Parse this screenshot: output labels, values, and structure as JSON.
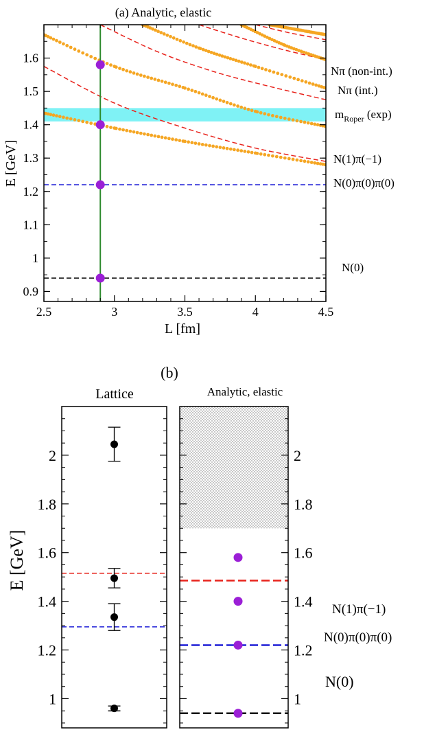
{
  "chart_data": [
    {
      "type": "line",
      "title": "(a) Analytic, elastic",
      "xlabel": "L [fm]",
      "ylabel": "E [GeV]",
      "xlim": [
        2.5,
        4.5
      ],
      "ylim": [
        0.87,
        1.7
      ],
      "xticks": [
        "2.5",
        "3",
        "3.5",
        "4",
        "4.5"
      ],
      "yticks": [
        "0.9",
        "1",
        "1.1",
        "1.2",
        "1.3",
        "1.4",
        "1.5",
        "1.6"
      ],
      "band": {
        "label_main": "m",
        "label_sub": "Roper",
        "label_tail": " (exp)",
        "y_low": 1.41,
        "y_high": 1.45,
        "color": "#7ff2f5"
      },
      "vertical_line": {
        "x": 2.9,
        "color": "#2e8b2e"
      },
      "horizontal_lines": [
        {
          "name": "N(0)π(0)π(0)",
          "y": 1.22,
          "color": "#1f1fd6"
        },
        {
          "name": "N(0)",
          "y": 0.94,
          "color": "#000000"
        }
      ],
      "noninteracting_curves": {
        "name": "Nπ (non-int.)",
        "color": "#e8231c",
        "label_curve": "N(1)π(−1)",
        "series": [
          {
            "x": [
              2.5,
              3.0,
              3.5,
              4.0,
              4.5
            ],
            "y": [
              1.575,
              1.465,
              1.39,
              1.33,
              1.29
            ]
          },
          {
            "x": [
              2.9,
              3.3,
              3.7,
              4.1,
              4.5
            ],
            "y": [
              1.7,
              1.62,
              1.56,
              1.515,
              1.475
            ]
          },
          {
            "x": [
              3.6,
              3.9,
              4.2,
              4.5
            ],
            "y": [
              1.7,
              1.66,
              1.625,
              1.595
            ]
          },
          {
            "x": [
              4.0,
              4.25,
              4.5
            ],
            "y": [
              1.7,
              1.675,
              1.655
            ]
          }
        ]
      },
      "interacting_curves": {
        "name": "Nπ (int.)",
        "color": "#f5a623",
        "series": [
          {
            "x": [
              2.5,
              3.0,
              3.5,
              4.0,
              4.5
            ],
            "y": [
              1.435,
              1.39,
              1.35,
              1.315,
              1.28
            ]
          },
          {
            "x": [
              2.5,
              3.0,
              3.5,
              4.0,
              4.5
            ],
            "y": [
              1.67,
              1.575,
              1.51,
              1.44,
              1.395
            ]
          },
          {
            "x": [
              3.2,
              3.6,
              4.0,
              4.5
            ],
            "y": [
              1.7,
              1.63,
              1.575,
              1.51
            ]
          },
          {
            "x": [
              3.9,
              4.2,
              4.5
            ],
            "y": [
              1.7,
              1.64,
              1.595
            ]
          },
          {
            "x": [
              4.1,
              4.3,
              4.5
            ],
            "y": [
              1.7,
              1.685,
              1.67
            ]
          }
        ]
      },
      "points": {
        "x": 2.9,
        "y": [
          0.94,
          1.22,
          1.4,
          1.58
        ],
        "color": "#9b1fd6"
      },
      "right_labels": [
        {
          "text": "Nπ (non-int.)",
          "color": "#e8231c"
        },
        {
          "text": "Nπ (int.)",
          "color": "#f5a623"
        },
        {
          "text": "N(1)π(−1)",
          "color": "#e8231c"
        },
        {
          "text": "N(0)π(0)π(0)",
          "color": "#1f1fd6"
        },
        {
          "text": "N(0)",
          "color": "#000000"
        }
      ]
    },
    {
      "type": "scatter",
      "title": "(b)",
      "ylabel": "E [GeV]",
      "ylim": [
        0.88,
        2.2
      ],
      "yticks": [
        "1",
        "1.2",
        "1.4",
        "1.6",
        "1.8",
        "2"
      ],
      "panels": [
        {
          "title": "Lattice",
          "points": [
            {
              "y": 0.96,
              "err": 0.01
            },
            {
              "y": 1.335,
              "err": 0.055
            },
            {
              "y": 1.495,
              "err": 0.04
            },
            {
              "y": 2.045,
              "err": 0.07
            }
          ],
          "point_color": "#000000",
          "lines": [
            {
              "y": 1.515,
              "color": "#e8231c"
            },
            {
              "y": 1.295,
              "color": "#1f1fd6"
            }
          ]
        },
        {
          "title": "Analytic, elastic",
          "shaded_above": 1.7,
          "points": [
            {
              "y": 0.94
            },
            {
              "y": 1.22
            },
            {
              "y": 1.4
            },
            {
              "y": 1.58
            }
          ],
          "point_color": "#9b1fd6",
          "lines": [
            {
              "y": 1.485,
              "color": "#e8231c"
            },
            {
              "y": 1.22,
              "color": "#1f1fd6"
            },
            {
              "y": 0.94,
              "color": "#000000"
            }
          ]
        }
      ],
      "right_labels": [
        {
          "text": "N(1)π(−1)",
          "color": "#e8231c"
        },
        {
          "text": "N(0)π(0)π(0)",
          "color": "#1f1fd6"
        },
        {
          "text": "N(0)",
          "color": "#000000"
        }
      ]
    }
  ]
}
